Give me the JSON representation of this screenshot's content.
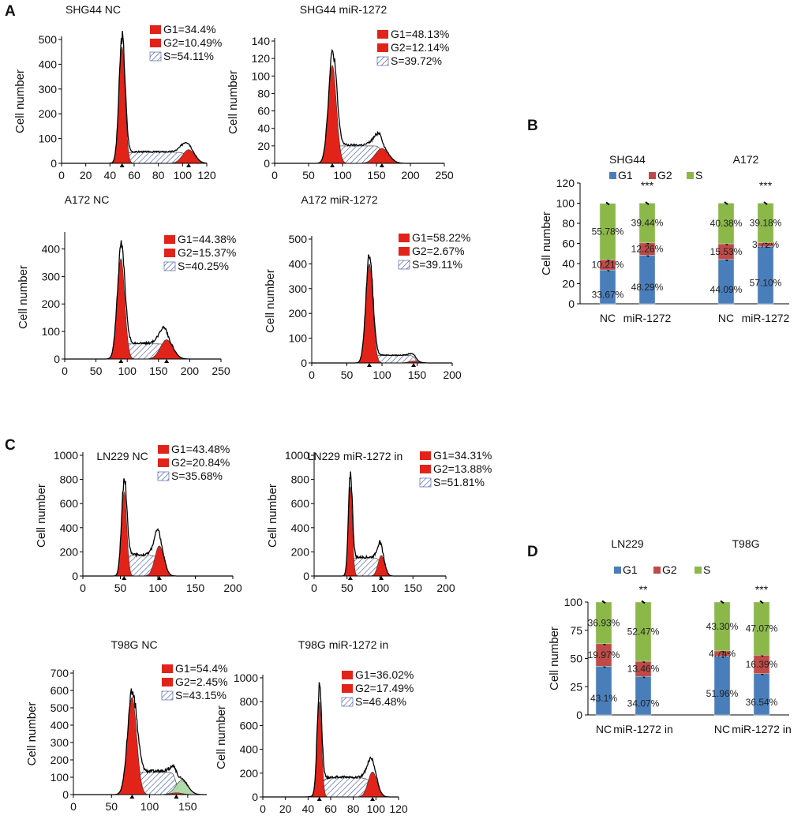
{
  "panel_labels": [
    "A",
    "B",
    "C",
    "D"
  ],
  "chart_data": {
    "histograms": [
      {
        "type": "area",
        "title": "SHG44 NC",
        "ylabel": "Cell number",
        "xlim": [
          0,
          120
        ],
        "ylim": [
          0,
          500
        ],
        "xticks": [
          "0",
          "20",
          "40",
          "60",
          "80",
          "100",
          "120"
        ],
        "xtick_values": [
          0,
          20,
          40,
          60,
          80,
          100,
          120
        ],
        "yticks": [
          "0",
          "100",
          "200",
          "300",
          "400",
          "500"
        ],
        "ytick_values": [
          0,
          100,
          200,
          300,
          400,
          500
        ],
        "legend": [
          "G1=34.4%",
          "G2=10.49%",
          "S=54.11%"
        ],
        "g1": {
          "mean": 50,
          "height": 470,
          "sd": 2.5
        },
        "g2": {
          "mean": 105,
          "height": 55,
          "sd": 5
        },
        "s": {
          "from": 50,
          "to": 105,
          "height": 45
        }
      },
      {
        "type": "area",
        "title": "SHG44  miR-1272",
        "ylabel": "Cell number",
        "xlim": [
          0,
          250
        ],
        "ylim": [
          0,
          140
        ],
        "xticks": [
          "0",
          "50",
          "100",
          "150",
          "200",
          "250"
        ],
        "xtick_values": [
          0,
          50,
          100,
          150,
          200,
          250
        ],
        "yticks": [
          "0",
          "20",
          "40",
          "60",
          "80",
          "100",
          "120",
          "140"
        ],
        "ytick_values": [
          0,
          20,
          40,
          60,
          80,
          100,
          120,
          140
        ],
        "legend": [
          "G1=48.13%",
          "G2=12.14%",
          "S=39.72%"
        ],
        "g1": {
          "mean": 85,
          "height": 112,
          "sd": 6
        },
        "g2": {
          "mean": 158,
          "height": 17,
          "sd": 10
        },
        "s": {
          "from": 85,
          "to": 158,
          "height": 20
        }
      },
      {
        "type": "area",
        "title": "A172  NC",
        "ylabel": "Cell number",
        "xlim": [
          0,
          250
        ],
        "ylim": [
          0,
          450
        ],
        "xticks": [
          "0",
          "50",
          "100",
          "150",
          "200",
          "250"
        ],
        "xtick_values": [
          0,
          50,
          100,
          150,
          200,
          250
        ],
        "yticks": [
          "0",
          "100",
          "200",
          "300",
          "400"
        ],
        "ytick_values": [
          0,
          100,
          200,
          300,
          400
        ],
        "legend": [
          "G1=44.38%",
          "G2=15.37%",
          "S=40.25%"
        ],
        "g1": {
          "mean": 90,
          "height": 365,
          "sd": 6
        },
        "g2": {
          "mean": 163,
          "height": 70,
          "sd": 10
        },
        "s": {
          "from": 90,
          "to": 163,
          "height": 55
        }
      },
      {
        "type": "area",
        "title": "A172   miR-1272",
        "ylabel": "Cell number",
        "xlim": [
          0,
          200
        ],
        "ylim": [
          0,
          500
        ],
        "xticks": [
          "0",
          "50",
          "100",
          "150",
          "200"
        ],
        "xtick_values": [
          0,
          50,
          100,
          150,
          200
        ],
        "yticks": [
          "0",
          "100",
          "200",
          "300",
          "400",
          "500"
        ],
        "ytick_values": [
          0,
          100,
          200,
          300,
          400,
          500
        ],
        "legend": [
          "G1=58.22%",
          "G2=2.67%",
          "S=39.11%"
        ],
        "g1": {
          "mean": 82,
          "height": 400,
          "sd": 5
        },
        "g2": {
          "mean": 145,
          "height": 8,
          "sd": 7
        },
        "s": {
          "from": 82,
          "to": 148,
          "height": 30
        }
      },
      {
        "type": "area",
        "title": "LN229 NC",
        "ylabel": "Cell number",
        "xlim": [
          0,
          200
        ],
        "ylim": [
          0,
          1000
        ],
        "xticks": [
          "0",
          "50",
          "100",
          "150",
          "200"
        ],
        "xtick_values": [
          0,
          50,
          100,
          150,
          200
        ],
        "yticks": [
          "0",
          "200",
          "400",
          "600",
          "800",
          "1000"
        ],
        "ytick_values": [
          0,
          200,
          400,
          600,
          800,
          1000
        ],
        "legend": [
          "G1=43.48%",
          "G2=20.84%",
          "S=35.68%"
        ],
        "g1": {
          "mean": 55,
          "height": 700,
          "sd": 3.5
        },
        "g2": {
          "mean": 102,
          "height": 250,
          "sd": 6
        },
        "s": {
          "from": 55,
          "to": 102,
          "height": 170
        }
      },
      {
        "type": "area",
        "title": "LN229 miR-1272 in",
        "ylabel": "Cell number",
        "xlim": [
          0,
          200
        ],
        "ylim": [
          0,
          1000
        ],
        "xticks": [
          "0",
          "50",
          "100",
          "150",
          "200"
        ],
        "xtick_values": [
          0,
          50,
          100,
          150,
          200
        ],
        "yticks": [
          "0",
          "200",
          "400",
          "600",
          "800",
          "1000"
        ],
        "ytick_values": [
          0,
          200,
          400,
          600,
          800,
          1000
        ],
        "legend": [
          "G1=34.31%",
          "G2=13.88%",
          "S=51.81%"
        ],
        "g1": {
          "mean": 55,
          "height": 740,
          "sd": 3
        },
        "g2": {
          "mean": 102,
          "height": 170,
          "sd": 5
        },
        "s": {
          "from": 55,
          "to": 102,
          "height": 150
        }
      },
      {
        "type": "area",
        "title": "T98G NC",
        "ylabel": "Cell number",
        "xlim": [
          0,
          175
        ],
        "ylim": [
          0,
          700
        ],
        "xticks": [
          "0",
          "50",
          "100",
          "150"
        ],
        "xtick_values": [
          0,
          50,
          100,
          150
        ],
        "yticks": [
          "0",
          "100",
          "200",
          "300",
          "400",
          "500",
          "600",
          "700"
        ],
        "ytick_values": [
          0,
          100,
          200,
          300,
          400,
          500,
          600,
          700
        ],
        "legend": [
          "G1=54.4%",
          "G2=2.45%",
          "S=43.15%"
        ],
        "g1": {
          "mean": 77,
          "height": 560,
          "sd": 6
        },
        "g2": {
          "mean": 135,
          "height": 10,
          "sd": 8
        },
        "s": {
          "from": 82,
          "to": 135,
          "height": 130
        },
        "extra": {
          "mean": 142,
          "height": 80,
          "sd": 8
        }
      },
      {
        "type": "area",
        "title": "T98G miR-1272 in",
        "ylabel": "Cell number",
        "xlim": [
          0,
          120
        ],
        "ylim": [
          0,
          1000
        ],
        "xticks": [
          "0",
          "20",
          "40",
          "60",
          "80",
          "100",
          "120"
        ],
        "xtick_values": [
          0,
          20,
          40,
          60,
          80,
          100,
          120
        ],
        "yticks": [
          "0",
          "200",
          "400",
          "600",
          "800",
          "1000"
        ],
        "ytick_values": [
          0,
          200,
          400,
          600,
          800,
          1000
        ],
        "legend": [
          "G1=36.02%",
          "G2=17.49%",
          "S=46.48%"
        ],
        "g1": {
          "mean": 50,
          "height": 800,
          "sd": 2
        },
        "g2": {
          "mean": 97,
          "height": 210,
          "sd": 4
        },
        "s": {
          "from": 50,
          "to": 97,
          "height": 160
        }
      }
    ],
    "bars": [
      {
        "type": "bar",
        "ylabel": "Cell number",
        "ylim": [
          0,
          120
        ],
        "yticks": [
          "0",
          "20",
          "40",
          "60",
          "80",
          "100",
          "120"
        ],
        "ytick_values": [
          0,
          20,
          40,
          60,
          80,
          100,
          120
        ],
        "legend": [
          "G1",
          "G2",
          "S"
        ],
        "groups": [
          "SHG44",
          "A172"
        ],
        "categories": [
          "NC",
          "miR-1272",
          "NC",
          "miR-1272"
        ],
        "series": [
          {
            "name": "G1",
            "values": [
              33.67,
              48.29,
              44.09,
              57.1
            ],
            "labels": [
              "33.67%",
              "48.29%",
              "44.09%",
              "57.10%"
            ]
          },
          {
            "name": "G2",
            "values": [
              10.21,
              12.26,
              15.53,
              3.72
            ],
            "labels": [
              "10.21%",
              "12.26%",
              "15.53%",
              "3.72%"
            ]
          },
          {
            "name": "S",
            "values": [
              55.78,
              39.44,
              40.38,
              39.18
            ],
            "labels": [
              "55.78%",
              "39.44%",
              "40.38%",
              "39.18%"
            ]
          }
        ],
        "significance": [
          "",
          "***",
          "",
          "***"
        ]
      },
      {
        "type": "bar",
        "ylabel": "Cell number",
        "ylim": [
          0,
          100
        ],
        "yticks": [
          "0",
          "25",
          "50",
          "75",
          "100"
        ],
        "ytick_values": [
          0,
          25,
          50,
          75,
          100
        ],
        "legend": [
          "G1",
          "G2",
          "S"
        ],
        "groups": [
          "LN229",
          "T98G"
        ],
        "categories": [
          "NC",
          "miR-1272 in",
          "NC",
          "miR-1272 in"
        ],
        "series": [
          {
            "name": "G1",
            "values": [
              43.1,
              34.07,
              51.96,
              36.54
            ],
            "labels": [
              "43.1%",
              "34.07%",
              "51.96%",
              "36.54%"
            ]
          },
          {
            "name": "G2",
            "values": [
              19.97,
              13.46,
              4.74,
              16.39
            ],
            "labels": [
              "19.97%",
              "13.46%",
              "4.74%",
              "16.39%"
            ]
          },
          {
            "name": "S",
            "values": [
              36.93,
              52.47,
              43.3,
              47.07
            ],
            "labels": [
              "36.93%",
              "52.47%",
              "43.30%",
              "47.07%"
            ]
          }
        ],
        "significance": [
          "",
          "**",
          "",
          "***"
        ]
      }
    ]
  },
  "colors": {
    "g1_fill": "#e2231a",
    "s_hatch": "#3a4fa0",
    "extra_fill": "#a8d8a0",
    "bar_g1": "#4a7ebb",
    "bar_g2": "#be4b48",
    "bar_s": "#8cb84a"
  }
}
